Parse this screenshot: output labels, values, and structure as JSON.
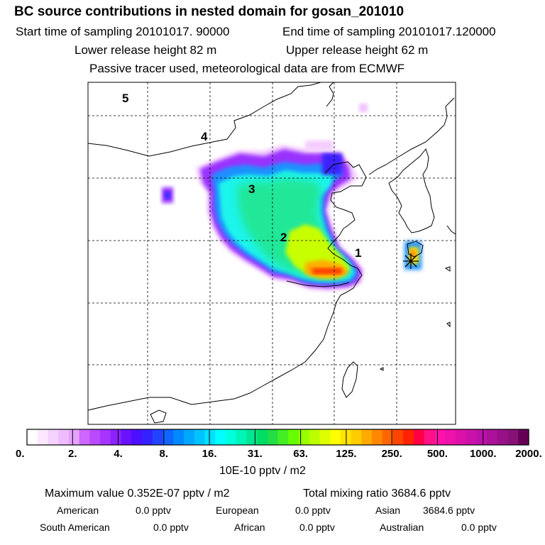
{
  "header": {
    "title": "BC  source contributions in nested domain for gosan_201010",
    "start_time": "Start time of sampling 20101017. 90000",
    "end_time": "End time of sampling 20101017.120000",
    "lower_release": "Lower release height   82 m",
    "upper_release": "Upper release height   62 m",
    "tracer_note": "Passive tracer used, meteorological data are from ECMWF"
  },
  "chart_data": {
    "type": "heatmap",
    "region_labels": [
      "1",
      "2",
      "3",
      "4",
      "5"
    ],
    "receptor_marker": "star-icon",
    "colorbar": {
      "ticks": [
        "0.",
        "2.",
        "4.",
        "8.",
        "16.",
        "31.",
        "63.",
        "125.",
        "250.",
        "500.",
        "1000.",
        "2000."
      ],
      "unit_label": "10E-10 pptv / m2",
      "colors": [
        "#ffffff",
        "#fbe8ff",
        "#f5d2ff",
        "#eebcff",
        "#e6a2ff",
        "#cc66ff",
        "#b94aff",
        "#a633ff",
        "#8a22ff",
        "#6a11ff",
        "#4b11ff",
        "#3322ff",
        "#2244ff",
        "#1166ff",
        "#0088ff",
        "#00a6ff",
        "#00c3ff",
        "#00e0ff",
        "#00ffff",
        "#00ffdd",
        "#00f5b8",
        "#00e692",
        "#00dd66",
        "#22dd44",
        "#44ee22",
        "#66ff00",
        "#99ff00",
        "#bbff00",
        "#ddff00",
        "#ffff00",
        "#ffe400",
        "#ffcc00",
        "#ffaa00",
        "#ff8800",
        "#ff6600",
        "#ff4400",
        "#ff2200",
        "#ff0044",
        "#ff1188",
        "#ff11aa",
        "#ee11aa",
        "#dd11aa",
        "#cc11aa",
        "#bb11aa",
        "#aa1199",
        "#991188",
        "#881177",
        "#660055"
      ]
    }
  },
  "stats": {
    "maximum": "Maximum value  0.352E-07 pptv / m2",
    "total": "Total mixing ratio     3684.6 pptv",
    "american": "American",
    "american_val": "0.0 pptv",
    "european": "European",
    "european_val": "0.0 pptv",
    "asian": "Asian",
    "asian_val": "3684.6 pptv",
    "south_american": "South American",
    "south_american_val": "0.0 pptv",
    "african": "African",
    "african_val": "0.0 pptv",
    "australian": "Australian",
    "australian_val": "0.0 pptv"
  }
}
